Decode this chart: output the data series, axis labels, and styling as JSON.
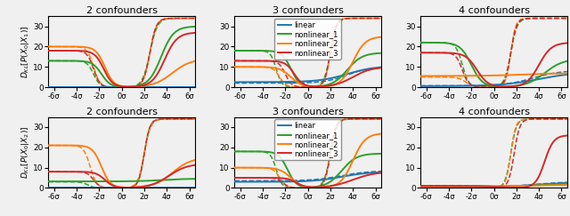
{
  "title_row1": [
    "2 confounders",
    "3 confounders",
    "4 confounders"
  ],
  "title_row2": [
    "2 confounders",
    "3 confounders",
    "4 confounders"
  ],
  "ylabel_row1": "$D_{KL}[P(X_0|X_1)]$",
  "ylabel_row2": "$D_{KL}[P(X_0|X_2)]$",
  "colors": [
    "#1f77b4",
    "#2ca02c",
    "#ff7f0e",
    "#d62728"
  ],
  "legend_labels": [
    "linear",
    "nonlinear_1",
    "nonlinear_2",
    "nonlinear_3"
  ],
  "x_ticks": [
    -6,
    -4,
    -2,
    0,
    2,
    4,
    6
  ],
  "x_tick_labels": [
    "-6σ",
    "-4σ",
    "-2σ",
    "0σ",
    "2σ",
    "4σ",
    "6σ"
  ],
  "ylim": [
    0,
    35
  ],
  "xlim": [
    -6.5,
    6.5
  ],
  "background": "#f0f0f0"
}
